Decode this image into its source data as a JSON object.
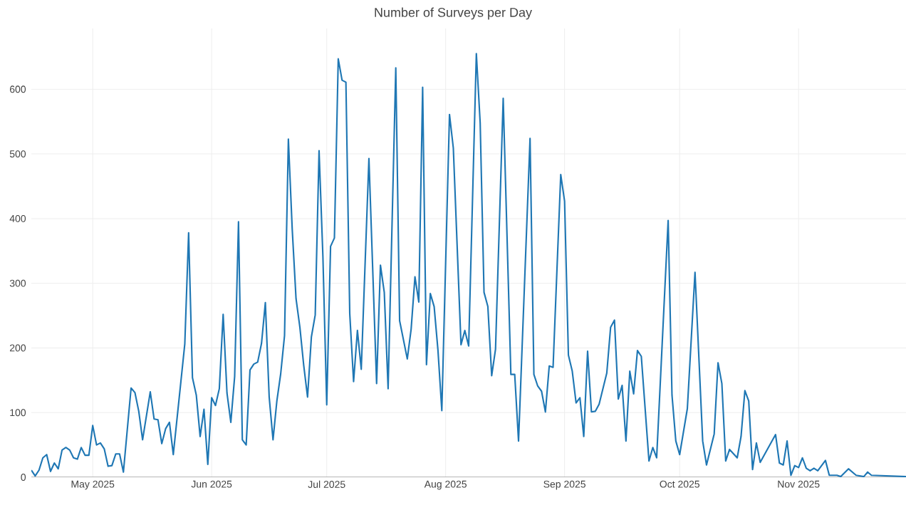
{
  "chart_data": {
    "type": "line",
    "title": "Number of Surveys per Day",
    "color": "#1f77b4",
    "grid": true,
    "x": [
      "2025-04-15",
      "2025-04-16",
      "2025-04-17",
      "2025-04-18",
      "2025-04-19",
      "2025-04-20",
      "2025-04-21",
      "2025-04-22",
      "2025-04-23",
      "2025-04-24",
      "2025-04-25",
      "2025-04-26",
      "2025-04-27",
      "2025-04-28",
      "2025-04-29",
      "2025-04-30",
      "2025-05-01",
      "2025-05-02",
      "2025-05-03",
      "2025-05-04",
      "2025-05-05",
      "2025-05-06",
      "2025-05-07",
      "2025-05-08",
      "2025-05-09",
      "2025-05-11",
      "2025-05-12",
      "2025-05-13",
      "2025-05-14",
      "2025-05-16",
      "2025-05-17",
      "2025-05-18",
      "2025-05-19",
      "2025-05-20",
      "2025-05-21",
      "2025-05-22",
      "2025-05-25",
      "2025-05-26",
      "2025-05-27",
      "2025-05-28",
      "2025-05-29",
      "2025-05-30",
      "2025-05-31",
      "2025-06-01",
      "2025-06-02",
      "2025-06-03",
      "2025-06-04",
      "2025-06-05",
      "2025-06-06",
      "2025-06-07",
      "2025-06-08",
      "2025-06-09",
      "2025-06-10",
      "2025-06-11",
      "2025-06-12",
      "2025-06-13",
      "2025-06-14",
      "2025-06-15",
      "2025-06-16",
      "2025-06-17",
      "2025-06-18",
      "2025-06-19",
      "2025-06-20",
      "2025-06-21",
      "2025-06-22",
      "2025-06-23",
      "2025-06-24",
      "2025-06-25",
      "2025-06-26",
      "2025-06-27",
      "2025-06-28",
      "2025-06-29",
      "2025-06-30",
      "2025-07-01",
      "2025-07-02",
      "2025-07-03",
      "2025-07-04",
      "2025-07-05",
      "2025-07-06",
      "2025-07-07",
      "2025-07-08",
      "2025-07-09",
      "2025-07-10",
      "2025-07-12",
      "2025-07-14",
      "2025-07-15",
      "2025-07-16",
      "2025-07-17",
      "2025-07-19",
      "2025-07-20",
      "2025-07-22",
      "2025-07-23",
      "2025-07-24",
      "2025-07-25",
      "2025-07-26",
      "2025-07-27",
      "2025-07-28",
      "2025-07-29",
      "2025-07-30",
      "2025-07-31",
      "2025-08-02",
      "2025-08-03",
      "2025-08-05",
      "2025-08-06",
      "2025-08-07",
      "2025-08-09",
      "2025-08-10",
      "2025-08-11",
      "2025-08-12",
      "2025-08-13",
      "2025-08-14",
      "2025-08-16",
      "2025-08-18",
      "2025-08-19",
      "2025-08-20",
      "2025-08-23",
      "2025-08-24",
      "2025-08-25",
      "2025-08-26",
      "2025-08-27",
      "2025-08-28",
      "2025-08-29",
      "2025-08-31",
      "2025-09-01",
      "2025-09-02",
      "2025-09-03",
      "2025-09-04",
      "2025-09-05",
      "2025-09-06",
      "2025-09-07",
      "2025-09-08",
      "2025-09-09",
      "2025-09-10",
      "2025-09-12",
      "2025-09-13",
      "2025-09-14",
      "2025-09-15",
      "2025-09-16",
      "2025-09-17",
      "2025-09-18",
      "2025-09-19",
      "2025-09-20",
      "2025-09-21",
      "2025-09-23",
      "2025-09-24",
      "2025-09-25",
      "2025-09-28",
      "2025-09-29",
      "2025-09-30",
      "2025-10-01",
      "2025-10-03",
      "2025-10-05",
      "2025-10-07",
      "2025-10-08",
      "2025-10-10",
      "2025-10-11",
      "2025-10-12",
      "2025-10-13",
      "2025-10-14",
      "2025-10-16",
      "2025-10-17",
      "2025-10-18",
      "2025-10-19",
      "2025-10-20",
      "2025-10-21",
      "2025-10-22",
      "2025-10-26",
      "2025-10-27",
      "2025-10-28",
      "2025-10-29",
      "2025-10-30",
      "2025-10-31",
      "2025-11-01",
      "2025-11-02",
      "2025-11-03",
      "2025-11-04",
      "2025-11-05",
      "2025-11-06",
      "2025-11-08",
      "2025-11-09",
      "2025-11-11",
      "2025-11-12",
      "2025-11-14",
      "2025-11-16",
      "2025-11-18",
      "2025-11-19",
      "2025-11-20",
      "2025-11-29"
    ],
    "values": [
      11,
      2,
      11,
      30,
      35,
      9,
      22,
      13,
      42,
      46,
      42,
      30,
      28,
      46,
      34,
      34,
      80,
      50,
      53,
      44,
      17,
      18,
      36,
      36,
      8,
      138,
      131,
      102,
      58,
      132,
      90,
      89,
      52,
      75,
      85,
      35,
      206,
      378,
      154,
      127,
      63,
      105,
      20,
      123,
      111,
      137,
      252,
      130,
      85,
      156,
      395,
      58,
      50,
      166,
      175,
      178,
      207,
      270,
      124,
      58,
      118,
      160,
      219,
      523,
      384,
      276,
      232,
      173,
      124,
      217,
      251,
      505,
      342,
      112,
      357,
      370,
      647,
      614,
      611,
      253,
      148,
      227,
      167,
      493,
      145,
      328,
      286,
      137,
      633,
      242,
      183,
      229,
      310,
      271,
      603,
      174,
      284,
      264,
      196,
      103,
      561,
      509,
      205,
      227,
      203,
      655,
      548,
      286,
      264,
      157,
      198,
      586,
      159,
      159,
      56,
      524,
      159,
      141,
      133,
      101,
      172,
      170,
      468,
      427,
      189,
      164,
      115,
      123,
      63,
      195,
      101,
      102,
      113,
      161,
      232,
      243,
      121,
      142,
      56,
      164,
      129,
      196,
      187,
      25,
      46,
      30,
      397,
      127,
      56,
      35,
      106,
      317,
      56,
      19,
      67,
      177,
      145,
      25,
      43,
      30,
      63,
      134,
      118,
      12,
      53,
      23,
      66,
      22,
      19,
      56,
      3,
      18,
      15,
      30,
      14,
      10,
      14,
      10,
      26,
      3,
      3,
      1,
      13,
      3,
      1,
      8,
      3,
      1
    ],
    "xlim": [
      "2025-04-15",
      "2025-11-29"
    ],
    "ylim": [
      0,
      694
    ],
    "xticks": [
      {
        "value": "2025-05-01",
        "label": "May 2025"
      },
      {
        "value": "2025-06-01",
        "label": "Jun 2025"
      },
      {
        "value": "2025-07-01",
        "label": "Jul 2025"
      },
      {
        "value": "2025-08-01",
        "label": "Aug 2025"
      },
      {
        "value": "2025-09-01",
        "label": "Sep 2025"
      },
      {
        "value": "2025-10-01",
        "label": "Oct 2025"
      },
      {
        "value": "2025-11-01",
        "label": "Nov 2025"
      }
    ],
    "yticks": [
      0,
      100,
      200,
      300,
      400,
      500,
      600
    ]
  }
}
